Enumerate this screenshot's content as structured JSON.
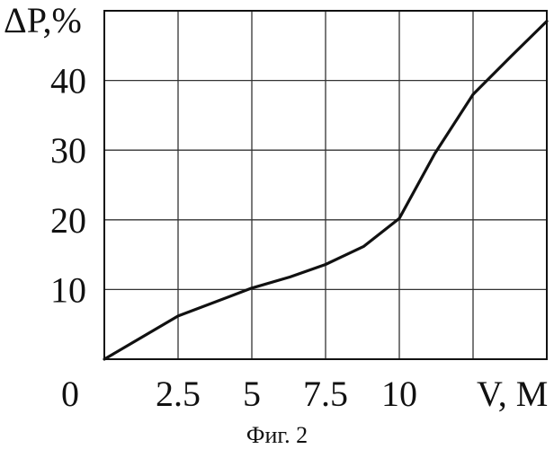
{
  "chart_data": {
    "type": "line",
    "ylabel": "ΔP,%",
    "xlabel": "V, M",
    "x_ticks": [
      "2.5",
      "5",
      "7.5",
      "10"
    ],
    "y_ticks": [
      "10",
      "20",
      "30",
      "40"
    ],
    "origin_label": "0",
    "xlim": [
      0,
      15
    ],
    "ylim": [
      0,
      50
    ],
    "grid": true,
    "series": [
      {
        "x": [
          0,
          2.5,
          5,
          6.3,
          7.5,
          8.8,
          10,
          11.2,
          12.5,
          13.8,
          15
        ],
        "y": [
          0,
          6.2,
          10.2,
          11.8,
          13.6,
          16.2,
          20.2,
          29.5,
          38,
          43.5,
          48.5
        ]
      }
    ]
  },
  "caption": "Фиг. 2"
}
